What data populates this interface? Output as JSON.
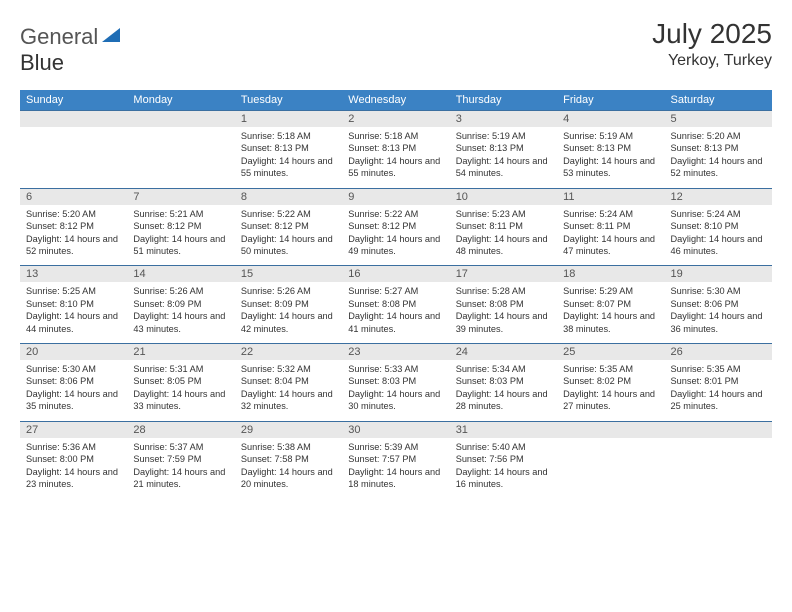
{
  "brand": {
    "part1": "General",
    "part2": "Blue"
  },
  "title": {
    "month": "July 2025",
    "location": "Yerkoy, Turkey"
  },
  "style": {
    "header_bg": "#3b82c4",
    "header_text": "#ffffff",
    "daynum_bg": "#e8e8e8",
    "border_color": "#3b6fa0",
    "logo_accent": "#1f6db5",
    "font_family": "Arial, Helvetica, sans-serif",
    "title_fontsize": 28,
    "location_fontsize": 16,
    "header_fontsize": 11,
    "daynum_fontsize": 11,
    "body_fontsize": 9.2
  },
  "days_of_week": [
    "Sunday",
    "Monday",
    "Tuesday",
    "Wednesday",
    "Thursday",
    "Friday",
    "Saturday"
  ],
  "weeks": [
    [
      null,
      null,
      {
        "n": "1",
        "sr": "5:18 AM",
        "ss": "8:13 PM",
        "dl": "14 hours and 55 minutes."
      },
      {
        "n": "2",
        "sr": "5:18 AM",
        "ss": "8:13 PM",
        "dl": "14 hours and 55 minutes."
      },
      {
        "n": "3",
        "sr": "5:19 AM",
        "ss": "8:13 PM",
        "dl": "14 hours and 54 minutes."
      },
      {
        "n": "4",
        "sr": "5:19 AM",
        "ss": "8:13 PM",
        "dl": "14 hours and 53 minutes."
      },
      {
        "n": "5",
        "sr": "5:20 AM",
        "ss": "8:13 PM",
        "dl": "14 hours and 52 minutes."
      }
    ],
    [
      {
        "n": "6",
        "sr": "5:20 AM",
        "ss": "8:12 PM",
        "dl": "14 hours and 52 minutes."
      },
      {
        "n": "7",
        "sr": "5:21 AM",
        "ss": "8:12 PM",
        "dl": "14 hours and 51 minutes."
      },
      {
        "n": "8",
        "sr": "5:22 AM",
        "ss": "8:12 PM",
        "dl": "14 hours and 50 minutes."
      },
      {
        "n": "9",
        "sr": "5:22 AM",
        "ss": "8:12 PM",
        "dl": "14 hours and 49 minutes."
      },
      {
        "n": "10",
        "sr": "5:23 AM",
        "ss": "8:11 PM",
        "dl": "14 hours and 48 minutes."
      },
      {
        "n": "11",
        "sr": "5:24 AM",
        "ss": "8:11 PM",
        "dl": "14 hours and 47 minutes."
      },
      {
        "n": "12",
        "sr": "5:24 AM",
        "ss": "8:10 PM",
        "dl": "14 hours and 46 minutes."
      }
    ],
    [
      {
        "n": "13",
        "sr": "5:25 AM",
        "ss": "8:10 PM",
        "dl": "14 hours and 44 minutes."
      },
      {
        "n": "14",
        "sr": "5:26 AM",
        "ss": "8:09 PM",
        "dl": "14 hours and 43 minutes."
      },
      {
        "n": "15",
        "sr": "5:26 AM",
        "ss": "8:09 PM",
        "dl": "14 hours and 42 minutes."
      },
      {
        "n": "16",
        "sr": "5:27 AM",
        "ss": "8:08 PM",
        "dl": "14 hours and 41 minutes."
      },
      {
        "n": "17",
        "sr": "5:28 AM",
        "ss": "8:08 PM",
        "dl": "14 hours and 39 minutes."
      },
      {
        "n": "18",
        "sr": "5:29 AM",
        "ss": "8:07 PM",
        "dl": "14 hours and 38 minutes."
      },
      {
        "n": "19",
        "sr": "5:30 AM",
        "ss": "8:06 PM",
        "dl": "14 hours and 36 minutes."
      }
    ],
    [
      {
        "n": "20",
        "sr": "5:30 AM",
        "ss": "8:06 PM",
        "dl": "14 hours and 35 minutes."
      },
      {
        "n": "21",
        "sr": "5:31 AM",
        "ss": "8:05 PM",
        "dl": "14 hours and 33 minutes."
      },
      {
        "n": "22",
        "sr": "5:32 AM",
        "ss": "8:04 PM",
        "dl": "14 hours and 32 minutes."
      },
      {
        "n": "23",
        "sr": "5:33 AM",
        "ss": "8:03 PM",
        "dl": "14 hours and 30 minutes."
      },
      {
        "n": "24",
        "sr": "5:34 AM",
        "ss": "8:03 PM",
        "dl": "14 hours and 28 minutes."
      },
      {
        "n": "25",
        "sr": "5:35 AM",
        "ss": "8:02 PM",
        "dl": "14 hours and 27 minutes."
      },
      {
        "n": "26",
        "sr": "5:35 AM",
        "ss": "8:01 PM",
        "dl": "14 hours and 25 minutes."
      }
    ],
    [
      {
        "n": "27",
        "sr": "5:36 AM",
        "ss": "8:00 PM",
        "dl": "14 hours and 23 minutes."
      },
      {
        "n": "28",
        "sr": "5:37 AM",
        "ss": "7:59 PM",
        "dl": "14 hours and 21 minutes."
      },
      {
        "n": "29",
        "sr": "5:38 AM",
        "ss": "7:58 PM",
        "dl": "14 hours and 20 minutes."
      },
      {
        "n": "30",
        "sr": "5:39 AM",
        "ss": "7:57 PM",
        "dl": "14 hours and 18 minutes."
      },
      {
        "n": "31",
        "sr": "5:40 AM",
        "ss": "7:56 PM",
        "dl": "14 hours and 16 minutes."
      },
      null,
      null
    ]
  ],
  "labels": {
    "sunrise": "Sunrise:",
    "sunset": "Sunset:",
    "daylight": "Daylight:"
  }
}
